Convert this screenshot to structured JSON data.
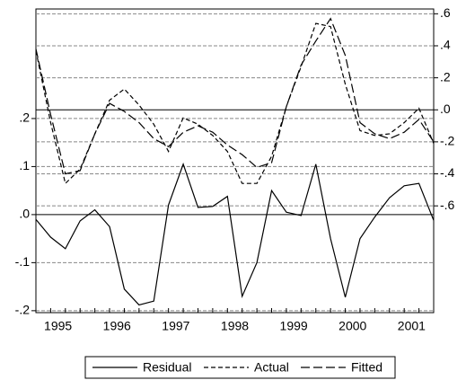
{
  "chart_data": {
    "type": "line",
    "categories": [
      null,
      null,
      null,
      "1995",
      null,
      null,
      null,
      "1996",
      null,
      null,
      null,
      "1997",
      null,
      null,
      null,
      "1998",
      null,
      null,
      null,
      "1999",
      null,
      null,
      null,
      "2000",
      null,
      null,
      null,
      "2001"
    ],
    "series": [
      {
        "name": "Residual",
        "color": "#000000",
        "dash": "solid",
        "axis": "y",
        "values": [
          -0.01,
          -0.047,
          -0.071,
          -0.013,
          0.01,
          -0.025,
          -0.155,
          -0.188,
          -0.18,
          0.02,
          0.105,
          0.015,
          0.017,
          0.038,
          -0.17,
          -0.1,
          0.05,
          0.005,
          -0.002,
          0.105,
          -0.05,
          -0.172,
          -0.05,
          -0.005,
          0.035,
          0.06,
          0.065,
          -0.012
        ]
      },
      {
        "name": "Actual",
        "color": "#000000",
        "dash": "short",
        "axis": "y2",
        "values": [
          0.37,
          -0.08,
          -0.46,
          -0.37,
          -0.15,
          0.06,
          0.13,
          0.03,
          -0.09,
          -0.26,
          -0.05,
          -0.09,
          -0.16,
          -0.26,
          -0.46,
          -0.46,
          -0.29,
          0.02,
          0.27,
          0.54,
          0.52,
          0.16,
          -0.13,
          -0.16,
          -0.15,
          -0.08,
          0.01,
          -0.21
        ]
      },
      {
        "name": "Fitted",
        "color": "#000000",
        "dash": "long",
        "axis": "y2",
        "values": [
          0.38,
          -0.03,
          -0.4,
          -0.38,
          -0.15,
          0.04,
          -0.01,
          -0.08,
          -0.18,
          -0.23,
          -0.14,
          -0.1,
          -0.14,
          -0.22,
          -0.28,
          -0.36,
          -0.33,
          0.02,
          0.28,
          0.43,
          0.57,
          0.34,
          -0.08,
          -0.15,
          -0.18,
          -0.14,
          -0.06,
          -0.2
        ]
      }
    ],
    "ylim": [
      -0.204,
      0.428
    ],
    "yticks": [
      {
        "value": -0.2,
        "label": "-.2"
      },
      {
        "value": -0.1,
        "label": "-.1"
      },
      {
        "value": 0,
        "label": ".0"
      },
      {
        "value": 0.1,
        "label": ".1"
      },
      {
        "value": 0.2,
        "label": ".2"
      }
    ],
    "y2lim": [
      -1.267,
      0.63
    ],
    "y2ticks": [
      {
        "value": -0.6,
        "label": "-.6"
      },
      {
        "value": -0.4,
        "label": "-.4"
      },
      {
        "value": -0.2,
        "label": "-.2"
      },
      {
        "value": 0,
        "label": ".0"
      },
      {
        "value": 0.2,
        "label": ".2"
      },
      {
        "value": 0.4,
        "label": ".4"
      },
      {
        "value": 0.6,
        "label": ".6"
      }
    ],
    "grid": true
  }
}
